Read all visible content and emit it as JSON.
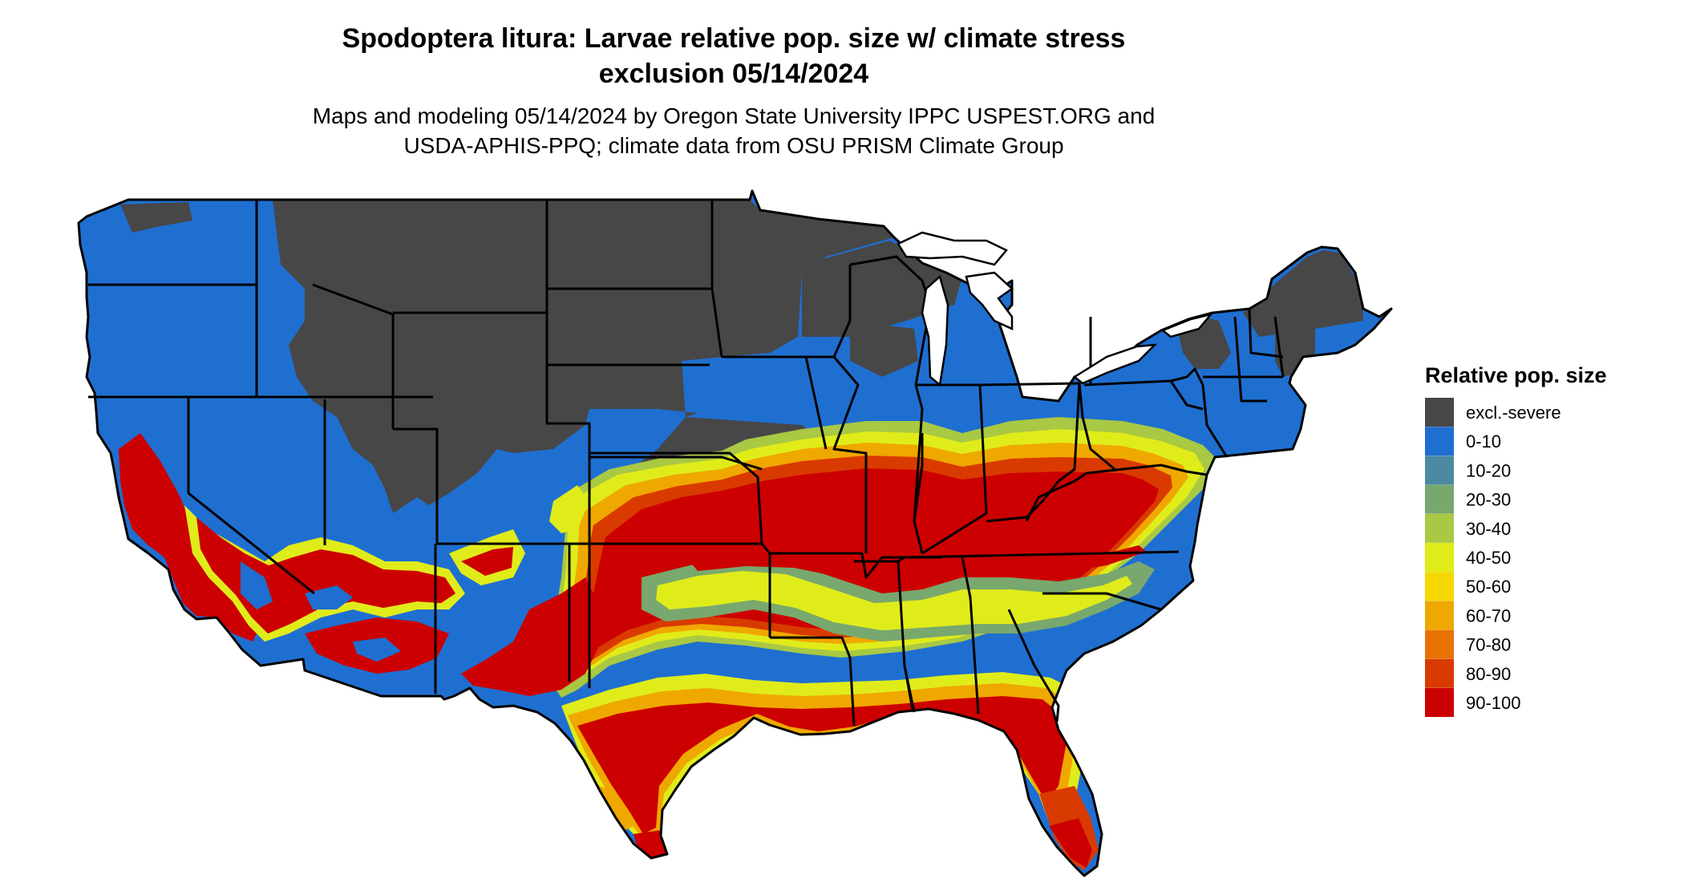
{
  "title_line1": "Spodoptera litura: Larvae relative pop. size w/ climate stress",
  "title_line2": "exclusion 05/14/2024",
  "subtitle_line1": "Maps and modeling 05/14/2024 by Oregon State University IPPC USPEST.ORG and",
  "subtitle_line2": "USDA-APHIS-PPQ; climate data from OSU PRISM Climate Group",
  "legend": {
    "title": "Relative pop. size",
    "items": [
      {
        "label": "excl.-severe",
        "color": "#474747"
      },
      {
        "label": "0-10",
        "color": "#1f6fd1"
      },
      {
        "label": "10-20",
        "color": "#4c8aa3"
      },
      {
        "label": "20-30",
        "color": "#78a86e"
      },
      {
        "label": "30-40",
        "color": "#a9c843"
      },
      {
        "label": "40-50",
        "color": "#e0ec1a"
      },
      {
        "label": "50-60",
        "color": "#f5d800"
      },
      {
        "label": "60-70",
        "color": "#efa800"
      },
      {
        "label": "70-80",
        "color": "#e87200"
      },
      {
        "label": "80-90",
        "color": "#d93a00"
      },
      {
        "label": "90-100",
        "color": "#cc0000"
      }
    ]
  }
}
